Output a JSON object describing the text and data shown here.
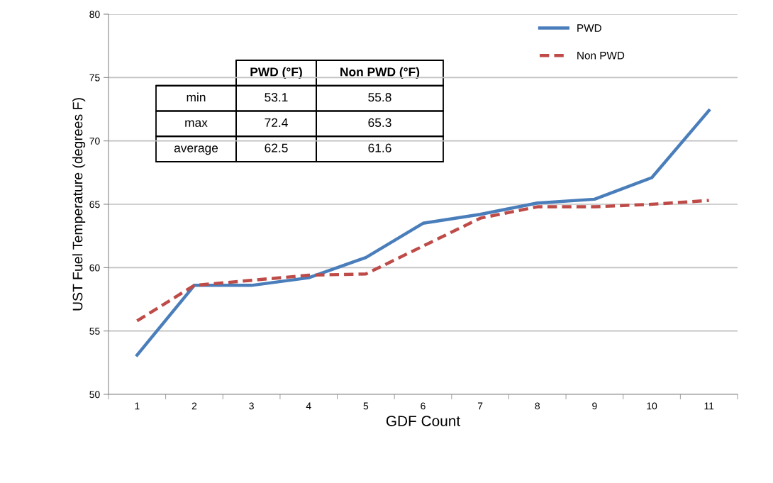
{
  "chart_data": {
    "type": "line",
    "xlabel": "GDF Count",
    "ylabel": "UST Fuel Temperature (degrees F)",
    "categories": [
      "1",
      "2",
      "3",
      "4",
      "5",
      "6",
      "7",
      "8",
      "9",
      "10",
      "11"
    ],
    "series": [
      {
        "name": "PWD",
        "color": "#4a7ebb",
        "line_style": "solid",
        "values": [
          53.1,
          58.6,
          58.6,
          59.2,
          60.8,
          63.5,
          64.2,
          65.1,
          65.4,
          67.1,
          72.4
        ]
      },
      {
        "name": "Non PWD",
        "color": "#be4b48",
        "line_style": "dashed",
        "values": [
          55.8,
          58.6,
          59.0,
          59.4,
          59.5,
          61.7,
          63.9,
          64.8,
          64.8,
          65.0,
          65.3
        ]
      }
    ],
    "ylim": [
      50,
      80
    ],
    "yticks": [
      50,
      55,
      60,
      65,
      70,
      75,
      80
    ],
    "grid": "y",
    "legend": "top right",
    "marker": "none",
    "annotations": [
      "PWD (°F)",
      "Non PWD (°F)",
      "min",
      "53.1",
      "55.8",
      "max",
      "72.4",
      "65.3",
      "average",
      "62.5",
      "61.6"
    ]
  }
}
